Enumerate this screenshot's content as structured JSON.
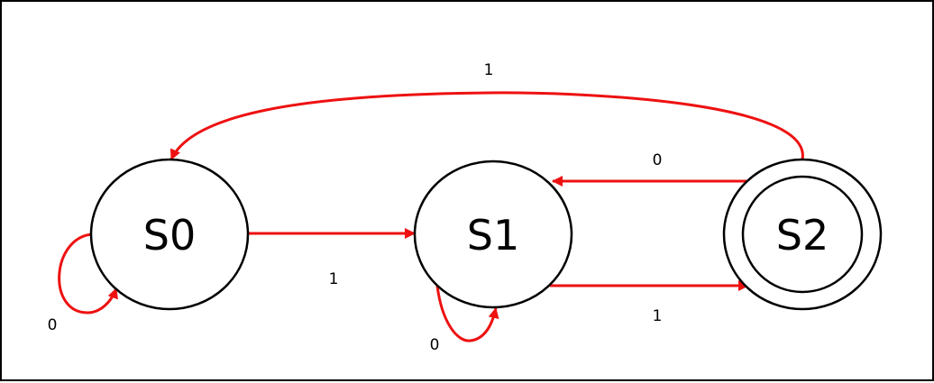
{
  "colors": {
    "edge": "#ee1111",
    "node_stroke": "#000000",
    "background": "#ffffff"
  },
  "states": [
    {
      "id": "S0",
      "label": "S0",
      "accepting": false
    },
    {
      "id": "S1",
      "label": "S1",
      "accepting": false
    },
    {
      "id": "S2",
      "label": "S2",
      "accepting": true
    }
  ],
  "transitions": [
    {
      "from": "S0",
      "to": "S0",
      "label": "0"
    },
    {
      "from": "S0",
      "to": "S1",
      "label": "1"
    },
    {
      "from": "S1",
      "to": "S1",
      "label": "0"
    },
    {
      "from": "S1",
      "to": "S2",
      "label": "1"
    },
    {
      "from": "S2",
      "to": "S1",
      "label": "0"
    },
    {
      "from": "S2",
      "to": "S0",
      "label": "1"
    }
  ]
}
